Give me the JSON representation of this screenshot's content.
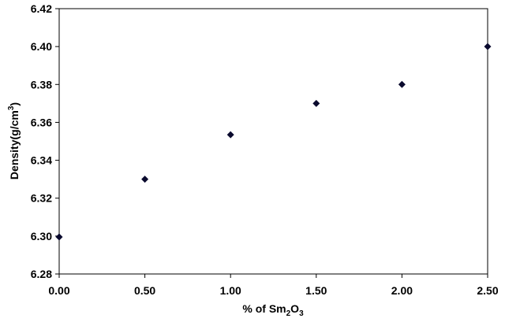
{
  "chart_data": {
    "type": "scatter",
    "title": "",
    "xlabel": {
      "pre": "% of Sm",
      "sub1": "2",
      "mid": "O",
      "sub2": "3"
    },
    "ylabel": {
      "pre": "Density(g/cm",
      "sup": "3",
      "post": ")"
    },
    "xlim": [
      0,
      2.5
    ],
    "ylim": [
      6.28,
      6.42
    ],
    "x_ticks": [
      "0.00",
      "0.50",
      "1.00",
      "1.50",
      "2.00",
      "2.50"
    ],
    "y_ticks": [
      "6.28",
      "6.30",
      "6.32",
      "6.34",
      "6.36",
      "6.38",
      "6.40",
      "6.42"
    ],
    "grid": false,
    "legend": "none",
    "marker": "diamond",
    "marker_color": "#0a0a2e",
    "series": [
      {
        "x": [
          0.0,
          0.5,
          1.0,
          1.5,
          2.0,
          2.5
        ],
        "y": [
          6.2995,
          6.33,
          6.3535,
          6.37,
          6.38,
          6.4
        ]
      }
    ]
  }
}
